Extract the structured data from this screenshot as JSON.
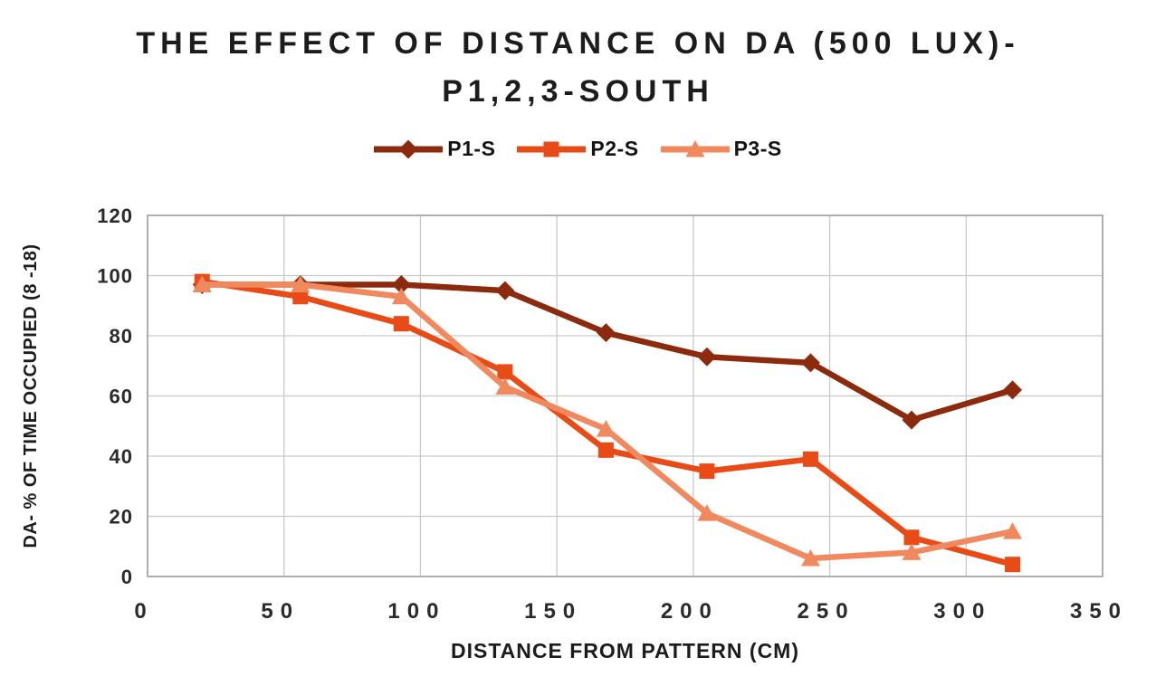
{
  "title": {
    "line1": "THE EFFECT OF DISTANCE ON DA (500 LUX)-",
    "line2": "P1,2,3-SOUTH"
  },
  "chart_data": {
    "type": "line",
    "title": "THE EFFECT OF DISTANCE ON DA (500 LUX)- P1,2,3-SOUTH",
    "xlabel": "DISTANCE FROM PATTERN (CM)",
    "ylabel": "DA- % OF TIME OCCUPIED (8 -18)",
    "x": [
      20,
      56,
      93,
      131,
      168,
      205,
      243,
      280,
      317
    ],
    "series": [
      {
        "name": "P1-S",
        "color": "#8C2A0E",
        "marker": "diamond",
        "values": [
          97,
          97,
          97,
          95,
          81,
          73,
          71,
          52,
          62
        ]
      },
      {
        "name": "P2-S",
        "color": "#E94B17",
        "marker": "square",
        "values": [
          98,
          93,
          84,
          68,
          42,
          35,
          39,
          13,
          4
        ]
      },
      {
        "name": "P3-S",
        "color": "#F08A5E",
        "marker": "triangle",
        "values": [
          97,
          97,
          93,
          63,
          49,
          21,
          6,
          8,
          15
        ]
      }
    ],
    "xlim": [
      0,
      350
    ],
    "ylim": [
      0,
      120
    ],
    "x_ticks": [
      0,
      50,
      100,
      150,
      200,
      250,
      300,
      350
    ],
    "y_ticks": [
      0,
      20,
      40,
      60,
      80,
      100,
      120
    ],
    "grid": true,
    "legend_position": "top"
  },
  "colors": {
    "grid": "#c9c9c9",
    "plot_border": "#a8a8a8",
    "tick_text": "#2b2b2b",
    "title_text": "#1c1c1c"
  }
}
